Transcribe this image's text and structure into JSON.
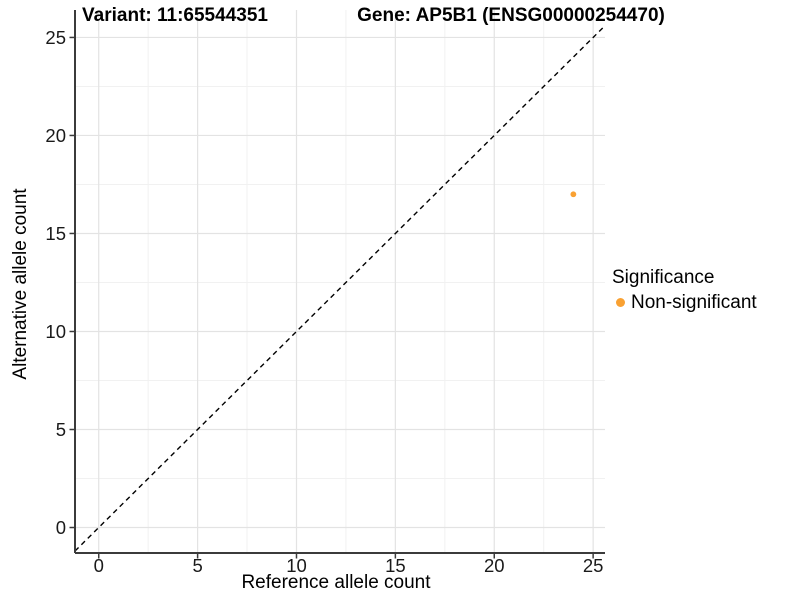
{
  "chart_data": {
    "type": "scatter",
    "titles": {
      "variant": "Variant: 11:65544351",
      "gene": "Gene: AP5B1 (ENSG00000254470)"
    },
    "xlabel": "Reference allele count",
    "ylabel": "Alternative allele count",
    "xlim": [
      -1.2,
      25.6
    ],
    "ylim": [
      -1.3,
      26.4
    ],
    "xticks": [
      0,
      5,
      10,
      15,
      20,
      25
    ],
    "yticks": [
      0,
      5,
      10,
      15,
      20,
      25
    ],
    "minor_gridlines_x": [
      2.5,
      7.5,
      12.5,
      17.5,
      22.5
    ],
    "minor_gridlines_y": [
      2.5,
      7.5,
      12.5,
      17.5,
      22.5
    ],
    "grid": "major+minor",
    "series": [
      {
        "name": "Non-significant",
        "color": "#F9A132",
        "points": [
          {
            "x": 24,
            "y": 17
          }
        ]
      }
    ],
    "identity_line": {
      "equation": "y = x",
      "style": "dashed",
      "color": "#000000"
    },
    "legend": {
      "title": "Significance",
      "position": "right",
      "items": [
        {
          "label": "Non-significant",
          "color": "#F9A132",
          "marker": "circle"
        }
      ]
    },
    "colors": {
      "background": "#FFFFFF",
      "grid_major": "#E3E3E3",
      "grid_minor": "#F1F1F1",
      "axis_line": "#3B3B3B",
      "tick_mark": "#3B3B3B",
      "tick_text": "#1A1A1A"
    }
  }
}
